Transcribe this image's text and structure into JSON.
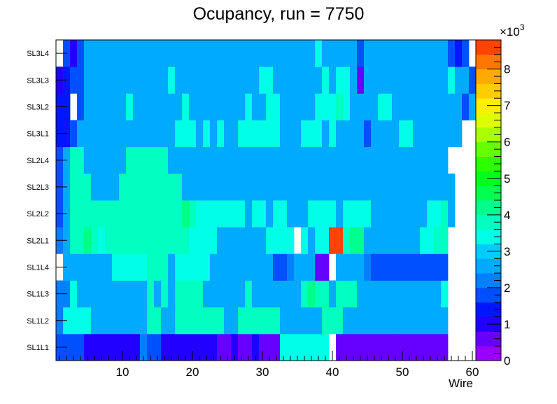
{
  "chart_data": {
    "type": "heatmap",
    "title": "Ocupancy, run = 7750",
    "xlabel": "Wire",
    "ylabel": "",
    "xlim": [
      0.5,
      60.5
    ],
    "x_ticks": [
      "10",
      "20",
      "30",
      "40",
      "50",
      "60"
    ],
    "rows": [
      "SL1L1",
      "SL1L2",
      "SL1L3",
      "SL1L4",
      "SL2L1",
      "SL2L2",
      "SL2L3",
      "SL2L4",
      "SL3L1",
      "SL3L2",
      "SL3L3",
      "SL3L4"
    ],
    "colorbar": {
      "multiplier_label": "×10",
      "multiplier_exponent": "3",
      "ticks": [
        "0",
        "1",
        "2",
        "3",
        "4",
        "5",
        "6",
        "7",
        "8"
      ],
      "zlim": [
        0,
        8.8
      ]
    },
    "values_unit": "x10^3 hits",
    "values": [
      [
        1.6,
        1.6,
        1.6,
        1.6,
        0.8,
        0.8,
        0.8,
        0.8,
        0.8,
        0.8,
        0.8,
        0.8,
        2.0,
        1.6,
        1.6,
        0.8,
        0.8,
        0.8,
        0.8,
        0.8,
        0.8,
        0.8,
        0.8,
        0.5,
        0.5,
        0.8,
        0.5,
        0.5,
        0.8,
        0.5,
        0.5,
        0.5,
        3.2,
        3.2,
        3.2,
        3.2,
        3.2,
        3.2,
        3.2,
        null,
        0.5,
        0.5,
        0.5,
        0.5,
        0.5,
        0.5,
        0.5,
        0.5,
        0.5,
        0.5,
        0.5,
        0.5,
        0.5,
        0.5,
        0.5,
        0.5,
        null,
        null,
        null,
        null
      ],
      [
        2.0,
        3.2,
        3.2,
        3.2,
        3.2,
        2.8,
        2.8,
        2.8,
        2.8,
        2.8,
        2.8,
        2.8,
        2.8,
        3.6,
        3.6,
        2.8,
        2.8,
        3.6,
        3.6,
        3.6,
        3.6,
        3.6,
        3.6,
        3.6,
        2.8,
        2.8,
        3.6,
        3.6,
        3.6,
        3.6,
        3.6,
        3.6,
        2.8,
        2.8,
        2.8,
        2.8,
        2.8,
        2.8,
        3.6,
        3.6,
        3.6,
        2.8,
        2.8,
        2.8,
        2.8,
        2.8,
        2.8,
        2.8,
        2.8,
        2.8,
        2.8,
        2.8,
        2.8,
        2.8,
        2.8,
        2.8,
        null,
        null,
        null,
        null
      ],
      [
        2.0,
        2.0,
        3.2,
        2.8,
        2.8,
        2.8,
        2.8,
        2.8,
        2.8,
        2.8,
        2.8,
        2.8,
        2.8,
        3.6,
        2.8,
        3.6,
        2.8,
        3.6,
        3.6,
        3.6,
        3.6,
        2.8,
        2.8,
        2.8,
        2.8,
        2.8,
        2.8,
        3.6,
        2.8,
        2.8,
        2.8,
        2.8,
        2.8,
        2.8,
        2.8,
        3.6,
        4.0,
        3.6,
        3.6,
        2.8,
        3.6,
        3.6,
        3.6,
        2.8,
        2.8,
        2.8,
        2.8,
        2.8,
        2.8,
        2.8,
        2.8,
        2.8,
        2.8,
        2.8,
        2.8,
        3.2,
        null,
        null,
        null,
        null
      ],
      [
        null,
        2.4,
        2.4,
        2.4,
        2.4,
        2.4,
        2.4,
        2.4,
        3.2,
        3.2,
        3.2,
        3.2,
        3.2,
        3.6,
        3.6,
        3.6,
        2.4,
        3.2,
        3.2,
        3.2,
        3.2,
        3.2,
        2.4,
        2.4,
        2.4,
        2.4,
        2.4,
        2.4,
        2.4,
        2.4,
        2.4,
        1.6,
        1.6,
        2.0,
        2.4,
        2.4,
        2.4,
        0.5,
        0.5,
        null,
        2.4,
        2.4,
        2.4,
        2.4,
        2.0,
        1.6,
        1.6,
        1.6,
        1.6,
        1.6,
        1.6,
        1.6,
        1.6,
        1.6,
        1.6,
        1.6,
        null,
        null,
        null,
        null
      ],
      [
        2.0,
        2.4,
        3.6,
        3.6,
        4.0,
        3.6,
        3.2,
        3.6,
        3.6,
        3.6,
        3.6,
        3.6,
        3.6,
        3.6,
        3.6,
        3.6,
        3.6,
        3.6,
        3.6,
        3.2,
        3.2,
        3.2,
        3.2,
        2.4,
        2.4,
        2.4,
        2.4,
        2.4,
        2.4,
        2.4,
        3.2,
        3.2,
        3.2,
        3.2,
        null,
        3.2,
        2.4,
        3.2,
        3.2,
        8.4,
        8.4,
        3.6,
        4.0,
        4.0,
        2.4,
        2.4,
        2.4,
        2.4,
        2.4,
        2.4,
        2.4,
        2.4,
        3.2,
        3.2,
        3.6,
        3.6,
        null,
        null,
        null,
        null
      ],
      [
        1.6,
        2.4,
        3.6,
        3.6,
        3.6,
        3.6,
        3.6,
        3.6,
        3.6,
        3.6,
        3.6,
        3.6,
        3.6,
        3.6,
        3.6,
        3.6,
        3.6,
        3.6,
        4.0,
        3.6,
        3.2,
        3.2,
        3.2,
        3.2,
        3.2,
        3.2,
        3.2,
        2.4,
        3.2,
        3.2,
        2.4,
        3.2,
        3.2,
        2.4,
        2.4,
        2.4,
        3.2,
        3.2,
        3.2,
        3.2,
        2.4,
        3.2,
        3.2,
        3.2,
        3.2,
        2.4,
        2.4,
        2.4,
        2.4,
        2.4,
        2.4,
        2.4,
        2.4,
        3.2,
        3.2,
        3.6,
        2.4,
        null,
        null,
        null
      ],
      [
        1.6,
        2.4,
        3.6,
        3.6,
        3.6,
        2.8,
        2.8,
        2.8,
        2.8,
        3.6,
        3.6,
        3.6,
        3.6,
        3.6,
        3.6,
        3.6,
        3.6,
        3.6,
        2.8,
        2.8,
        2.8,
        2.8,
        2.4,
        2.4,
        2.4,
        2.4,
        2.4,
        2.4,
        2.4,
        2.4,
        2.4,
        2.4,
        2.8,
        2.4,
        2.4,
        2.4,
        2.4,
        2.4,
        2.4,
        2.8,
        2.4,
        2.4,
        2.4,
        2.4,
        2.8,
        2.4,
        2.4,
        2.4,
        2.4,
        2.4,
        2.4,
        2.4,
        2.4,
        2.8,
        2.8,
        2.8,
        2.8,
        null,
        null,
        null
      ],
      [
        1.6,
        2.4,
        3.6,
        3.6,
        2.8,
        2.8,
        2.8,
        2.8,
        2.8,
        2.8,
        3.6,
        3.6,
        3.6,
        3.6,
        3.6,
        3.6,
        2.8,
        2.8,
        2.8,
        2.8,
        2.8,
        2.8,
        2.8,
        2.8,
        2.4,
        2.4,
        2.4,
        2.4,
        2.4,
        2.4,
        2.4,
        2.4,
        2.4,
        2.4,
        2.4,
        2.4,
        2.4,
        2.4,
        2.4,
        2.4,
        2.4,
        2.4,
        2.4,
        2.4,
        2.4,
        2.4,
        2.4,
        2.4,
        2.4,
        2.4,
        2.8,
        2.8,
        2.8,
        2.8,
        2.8,
        2.8,
        null,
        null,
        null,
        null
      ],
      [
        1.2,
        1.2,
        1.6,
        2.4,
        2.4,
        2.4,
        2.4,
        2.4,
        2.4,
        2.4,
        2.4,
        2.4,
        2.4,
        2.4,
        2.4,
        2.4,
        2.4,
        3.2,
        3.2,
        3.2,
        2.4,
        3.2,
        2.4,
        3.2,
        2.4,
        2.4,
        3.2,
        3.2,
        3.2,
        3.2,
        3.2,
        3.2,
        2.4,
        2.4,
        2.4,
        3.2,
        3.2,
        3.2,
        2.4,
        3.2,
        2.4,
        2.4,
        2.4,
        2.4,
        1.6,
        2.4,
        2.4,
        2.4,
        2.4,
        3.2,
        3.2,
        2.4,
        2.4,
        2.4,
        2.4,
        2.4,
        2.4,
        2.4,
        null,
        null
      ],
      [
        1.2,
        1.2,
        null,
        1.6,
        2.4,
        2.4,
        2.4,
        2.4,
        2.4,
        2.4,
        3.2,
        2.4,
        2.4,
        2.4,
        2.4,
        2.4,
        2.4,
        2.4,
        3.2,
        2.4,
        2.4,
        2.4,
        2.4,
        2.4,
        2.4,
        2.4,
        2.4,
        3.2,
        2.4,
        2.4,
        3.2,
        3.2,
        2.4,
        2.4,
        2.4,
        2.4,
        2.4,
        3.2,
        3.2,
        3.2,
        3.6,
        3.2,
        2.4,
        2.4,
        2.4,
        2.4,
        3.2,
        3.2,
        2.4,
        2.4,
        2.4,
        2.4,
        2.4,
        2.4,
        2.4,
        2.4,
        2.4,
        2.4,
        1.6,
        2.4
      ],
      [
        0.8,
        1.2,
        1.6,
        1.6,
        2.4,
        2.4,
        2.4,
        2.4,
        2.4,
        2.4,
        2.4,
        2.4,
        2.4,
        2.4,
        2.4,
        2.4,
        3.2,
        2.4,
        2.4,
        2.4,
        2.4,
        2.4,
        2.4,
        2.4,
        2.4,
        2.4,
        2.4,
        2.4,
        2.4,
        3.2,
        3.2,
        2.4,
        2.4,
        2.4,
        2.4,
        2.4,
        2.4,
        2.4,
        3.2,
        2.4,
        3.2,
        3.2,
        2.4,
        0.5,
        2.4,
        2.4,
        2.4,
        2.4,
        2.4,
        2.4,
        2.4,
        2.4,
        2.4,
        2.4,
        2.4,
        2.4,
        3.2,
        2.4,
        2.4,
        1.6
      ],
      [
        null,
        1.6,
        0.8,
        1.6,
        2.4,
        2.4,
        2.4,
        2.4,
        2.4,
        2.4,
        2.4,
        2.4,
        2.4,
        2.4,
        2.4,
        2.4,
        2.4,
        2.4,
        2.4,
        2.4,
        2.4,
        2.4,
        2.4,
        2.4,
        2.4,
        2.4,
        2.4,
        2.4,
        2.4,
        2.4,
        2.4,
        2.4,
        2.4,
        2.4,
        2.4,
        2.4,
        2.4,
        3.2,
        2.4,
        2.4,
        2.4,
        2.4,
        2.4,
        1.6,
        2.4,
        2.4,
        2.4,
        2.4,
        2.4,
        2.4,
        2.4,
        2.4,
        2.4,
        2.4,
        2.4,
        2.4,
        1.6,
        1.2,
        1.6,
        null
      ]
    ]
  }
}
